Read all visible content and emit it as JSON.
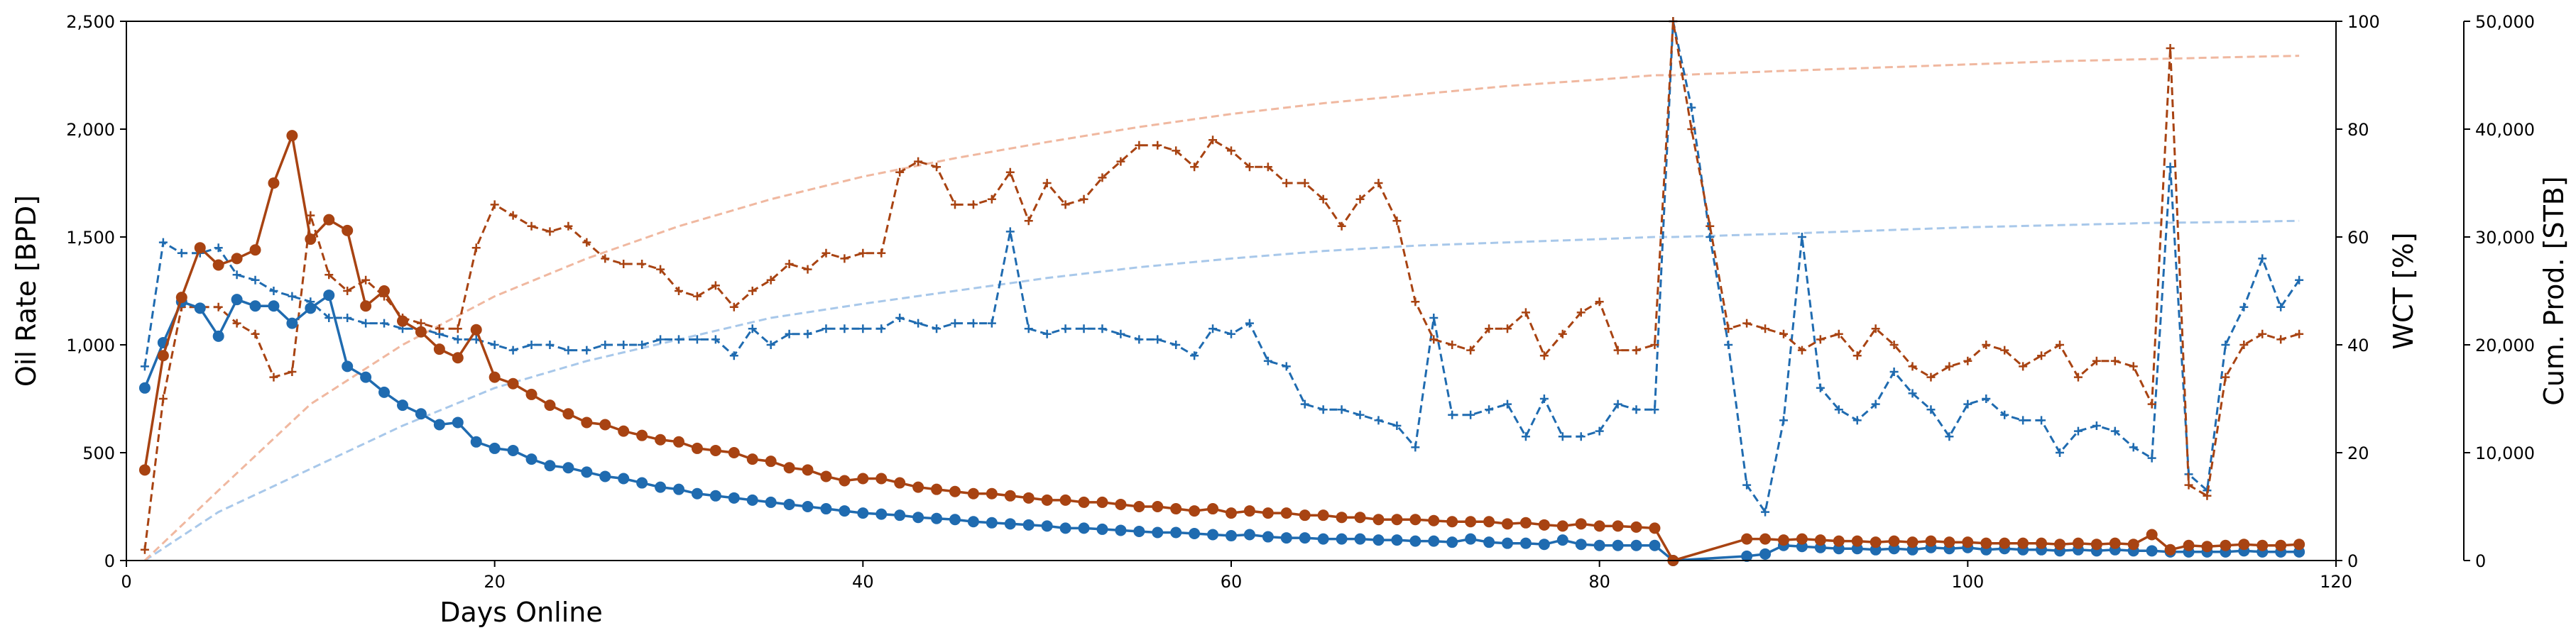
{
  "chart_data": {
    "type": "line",
    "xlabel": "Days Online",
    "ylabel_left": "Oil Rate [BPD]",
    "ylabel_right1": "WCT [%]",
    "ylabel_right2": "Cum. Prod. [STB]",
    "xlim": [
      0,
      120
    ],
    "ylim_left": [
      0,
      2500
    ],
    "ylim_right1": [
      0,
      100
    ],
    "ylim_right2": [
      0,
      50000
    ],
    "xticks": [
      0,
      20,
      40,
      60,
      80,
      100,
      120
    ],
    "xtick_labels": [
      "0",
      "20",
      "40",
      "60",
      "80",
      "100",
      "120"
    ],
    "yticks_left": [
      0,
      500,
      1000,
      1500,
      2000,
      2500
    ],
    "ytick_labels_left": [
      "0",
      "500",
      "1,000",
      "1,500",
      "2,000",
      "2,500"
    ],
    "yticks_right1": [
      0,
      20,
      40,
      60,
      80,
      100
    ],
    "ytick_labels_right1": [
      "0",
      "20",
      "40",
      "60",
      "80",
      "100"
    ],
    "yticks_right2": [
      0,
      10000,
      20000,
      30000,
      40000,
      50000
    ],
    "ytick_labels_right2": [
      "0",
      "10,000",
      "20,000",
      "30,000",
      "40,000",
      "50,000"
    ],
    "grid": false,
    "series": [
      {
        "axis": "left",
        "style": "solid-marker",
        "color": "#1f6bb0",
        "x": [
          1,
          2,
          3,
          4,
          5,
          6,
          7,
          8,
          9,
          10,
          11,
          12,
          13,
          14,
          15,
          16,
          17,
          18,
          19,
          20,
          21,
          22,
          23,
          24,
          25,
          26,
          27,
          28,
          29,
          30,
          31,
          32,
          33,
          34,
          35,
          36,
          37,
          38,
          39,
          40,
          41,
          42,
          43,
          44,
          45,
          46,
          47,
          48,
          49,
          50,
          51,
          52,
          53,
          54,
          55,
          56,
          57,
          58,
          59,
          60,
          61,
          62,
          63,
          64,
          65,
          66,
          67,
          68,
          69,
          70,
          71,
          72,
          73,
          74,
          75,
          76,
          77,
          78,
          79,
          80,
          81,
          82,
          83,
          84,
          88,
          89,
          90,
          91,
          92,
          93,
          94,
          95,
          96,
          97,
          98,
          99,
          100,
          101,
          102,
          103,
          104,
          105,
          106,
          107,
          108,
          109,
          110,
          111,
          112,
          113,
          114,
          115,
          116,
          117,
          118
        ],
        "y": [
          800,
          1010,
          1200,
          1170,
          1040,
          1210,
          1180,
          1180,
          1100,
          1170,
          1230,
          900,
          850,
          780,
          720,
          680,
          630,
          640,
          550,
          520,
          510,
          470,
          440,
          430,
          410,
          390,
          380,
          360,
          340,
          330,
          310,
          300,
          290,
          280,
          270,
          260,
          250,
          240,
          230,
          220,
          215,
          210,
          200,
          195,
          190,
          180,
          175,
          170,
          165,
          160,
          150,
          150,
          145,
          140,
          135,
          130,
          130,
          125,
          120,
          115,
          120,
          110,
          105,
          105,
          100,
          100,
          100,
          95,
          95,
          90,
          90,
          85,
          100,
          85,
          80,
          80,
          75,
          95,
          75,
          70,
          70,
          70,
          70,
          0,
          20,
          30,
          70,
          65,
          60,
          55,
          55,
          50,
          55,
          50,
          60,
          55,
          60,
          50,
          55,
          50,
          50,
          45,
          50,
          45,
          50,
          45,
          45,
          40,
          40,
          40,
          40,
          45,
          40,
          40,
          40
        ]
      },
      {
        "axis": "left",
        "style": "solid-marker",
        "color": "#a84312",
        "x": [
          1,
          2,
          3,
          4,
          5,
          6,
          7,
          8,
          9,
          10,
          11,
          12,
          13,
          14,
          15,
          16,
          17,
          18,
          19,
          20,
          21,
          22,
          23,
          24,
          25,
          26,
          27,
          28,
          29,
          30,
          31,
          32,
          33,
          34,
          35,
          36,
          37,
          38,
          39,
          40,
          41,
          42,
          43,
          44,
          45,
          46,
          47,
          48,
          49,
          50,
          51,
          52,
          53,
          54,
          55,
          56,
          57,
          58,
          59,
          60,
          61,
          62,
          63,
          64,
          65,
          66,
          67,
          68,
          69,
          70,
          71,
          72,
          73,
          74,
          75,
          76,
          77,
          78,
          79,
          80,
          81,
          82,
          83,
          84,
          88,
          89,
          90,
          91,
          92,
          93,
          94,
          95,
          96,
          97,
          98,
          99,
          100,
          101,
          102,
          103,
          104,
          105,
          106,
          107,
          108,
          109,
          110,
          111,
          112,
          113,
          114,
          115,
          116,
          117,
          118
        ],
        "y": [
          420,
          950,
          1220,
          1450,
          1370,
          1400,
          1440,
          1750,
          1970,
          1490,
          1580,
          1530,
          1180,
          1250,
          1110,
          1060,
          980,
          940,
          1070,
          850,
          820,
          770,
          720,
          680,
          640,
          630,
          600,
          580,
          560,
          550,
          520,
          510,
          500,
          470,
          460,
          430,
          420,
          390,
          370,
          380,
          380,
          360,
          340,
          330,
          320,
          310,
          310,
          300,
          290,
          280,
          280,
          270,
          270,
          260,
          250,
          250,
          240,
          230,
          240,
          220,
          230,
          220,
          220,
          210,
          210,
          200,
          200,
          190,
          190,
          190,
          185,
          180,
          180,
          180,
          170,
          175,
          165,
          160,
          170,
          160,
          160,
          155,
          150,
          0,
          100,
          100,
          95,
          100,
          95,
          90,
          90,
          85,
          90,
          85,
          90,
          85,
          85,
          80,
          80,
          80,
          80,
          75,
          80,
          75,
          80,
          75,
          120,
          50,
          70,
          65,
          70,
          75,
          70,
          70,
          75
        ]
      },
      {
        "axis": "right1",
        "style": "dashed-plus",
        "color": "#1f6bb0",
        "x": [
          1,
          2,
          3,
          4,
          5,
          6,
          7,
          8,
          9,
          10,
          11,
          12,
          13,
          14,
          15,
          16,
          17,
          18,
          19,
          20,
          21,
          22,
          23,
          24,
          25,
          26,
          27,
          28,
          29,
          30,
          31,
          32,
          33,
          34,
          35,
          36,
          37,
          38,
          39,
          40,
          41,
          42,
          43,
          44,
          45,
          46,
          47,
          48,
          49,
          50,
          51,
          52,
          53,
          54,
          55,
          56,
          57,
          58,
          59,
          60,
          61,
          62,
          63,
          64,
          65,
          66,
          67,
          68,
          69,
          70,
          71,
          72,
          73,
          74,
          75,
          76,
          77,
          78,
          79,
          80,
          81,
          82,
          83,
          84,
          85,
          86,
          87,
          88,
          89,
          90,
          91,
          92,
          93,
          94,
          95,
          96,
          97,
          98,
          99,
          100,
          101,
          102,
          103,
          104,
          105,
          106,
          107,
          108,
          109,
          110,
          111,
          112,
          113,
          114,
          115,
          116,
          117,
          118
        ],
        "y": [
          36,
          59,
          57,
          57,
          58,
          53,
          52,
          50,
          49,
          48,
          45,
          45,
          44,
          44,
          43,
          43,
          42,
          41,
          41,
          40,
          39,
          40,
          40,
          39,
          39,
          40,
          40,
          40,
          41,
          41,
          41,
          41,
          38,
          43,
          40,
          42,
          42,
          43,
          43,
          43,
          43,
          45,
          44,
          43,
          44,
          44,
          44,
          61,
          43,
          42,
          43,
          43,
          43,
          42,
          41,
          41,
          40,
          38,
          43,
          42,
          44,
          37,
          36,
          29,
          28,
          28,
          27,
          26,
          25,
          21,
          45,
          27,
          27,
          28,
          29,
          23,
          30,
          23,
          23,
          24,
          29,
          28,
          28,
          100,
          84,
          60,
          40,
          14,
          9,
          26,
          60,
          32,
          28,
          26,
          29,
          35,
          31,
          28,
          23,
          29,
          30,
          27,
          26,
          26,
          20,
          24,
          25,
          24,
          21,
          19,
          73,
          16,
          13,
          40,
          47,
          56,
          47,
          52
        ]
      },
      {
        "axis": "right1",
        "style": "dashed-plus",
        "color": "#a84312",
        "x": [
          1,
          2,
          3,
          4,
          5,
          6,
          7,
          8,
          9,
          10,
          11,
          12,
          13,
          14,
          15,
          16,
          17,
          18,
          19,
          20,
          21,
          22,
          23,
          24,
          25,
          26,
          27,
          28,
          29,
          30,
          31,
          32,
          33,
          34,
          35,
          36,
          37,
          38,
          39,
          40,
          41,
          42,
          43,
          44,
          45,
          46,
          47,
          48,
          49,
          50,
          51,
          52,
          53,
          54,
          55,
          56,
          57,
          58,
          59,
          60,
          61,
          62,
          63,
          64,
          65,
          66,
          67,
          68,
          69,
          70,
          71,
          72,
          73,
          74,
          75,
          76,
          77,
          78,
          79,
          80,
          81,
          82,
          83,
          84,
          85,
          86,
          87,
          88,
          89,
          90,
          91,
          92,
          93,
          94,
          95,
          96,
          97,
          98,
          99,
          100,
          101,
          102,
          103,
          104,
          105,
          106,
          107,
          108,
          109,
          110,
          111,
          112,
          113,
          114,
          115,
          116,
          117,
          118
        ],
        "y": [
          2,
          30,
          47,
          47,
          47,
          44,
          42,
          34,
          35,
          64,
          53,
          50,
          52,
          49,
          45,
          44,
          43,
          43,
          58,
          66,
          64,
          62,
          61,
          62,
          59,
          56,
          55,
          55,
          54,
          50,
          49,
          51,
          47,
          50,
          52,
          55,
          54,
          57,
          56,
          57,
          57,
          72,
          74,
          73,
          66,
          66,
          67,
          72,
          63,
          70,
          66,
          67,
          71,
          74,
          77,
          77,
          76,
          73,
          78,
          76,
          73,
          73,
          70,
          70,
          67,
          62,
          67,
          70,
          63,
          48,
          41,
          40,
          39,
          43,
          43,
          46,
          38,
          42,
          46,
          48,
          39,
          39,
          40,
          100,
          80,
          62,
          43,
          44,
          43,
          42,
          39,
          41,
          42,
          38,
          43,
          40,
          36,
          34,
          36,
          37,
          40,
          39,
          36,
          38,
          40,
          34,
          37,
          37,
          36,
          29,
          95,
          14,
          12,
          34,
          40,
          42,
          41,
          42
        ]
      },
      {
        "axis": "right2",
        "style": "dashed-faint",
        "color": "#a8c8ea",
        "x": [
          1,
          5,
          10,
          15,
          20,
          25,
          30,
          35,
          40,
          45,
          50,
          55,
          60,
          65,
          70,
          75,
          80,
          83,
          84,
          90,
          95,
          100,
          105,
          110,
          115,
          118
        ],
        "y": [
          0,
          4500,
          8500,
          12500,
          16000,
          18500,
          20500,
          22500,
          23800,
          25000,
          26200,
          27200,
          28000,
          28700,
          29200,
          29500,
          29800,
          30000,
          30000,
          30300,
          30600,
          30900,
          31100,
          31300,
          31400,
          31500
        ]
      },
      {
        "axis": "right2",
        "style": "dashed-faint",
        "color": "#f0b8a0",
        "x": [
          1,
          5,
          10,
          15,
          20,
          25,
          30,
          35,
          40,
          45,
          50,
          55,
          60,
          65,
          70,
          75,
          80,
          83,
          84,
          90,
          95,
          100,
          105,
          110,
          115,
          118
        ],
        "y": [
          0,
          6500,
          14500,
          20000,
          24500,
          28000,
          31000,
          33500,
          35600,
          37300,
          38800,
          40200,
          41400,
          42400,
          43200,
          44000,
          44600,
          45000,
          45000,
          45400,
          45700,
          46000,
          46300,
          46500,
          46700,
          46800
        ]
      }
    ]
  }
}
